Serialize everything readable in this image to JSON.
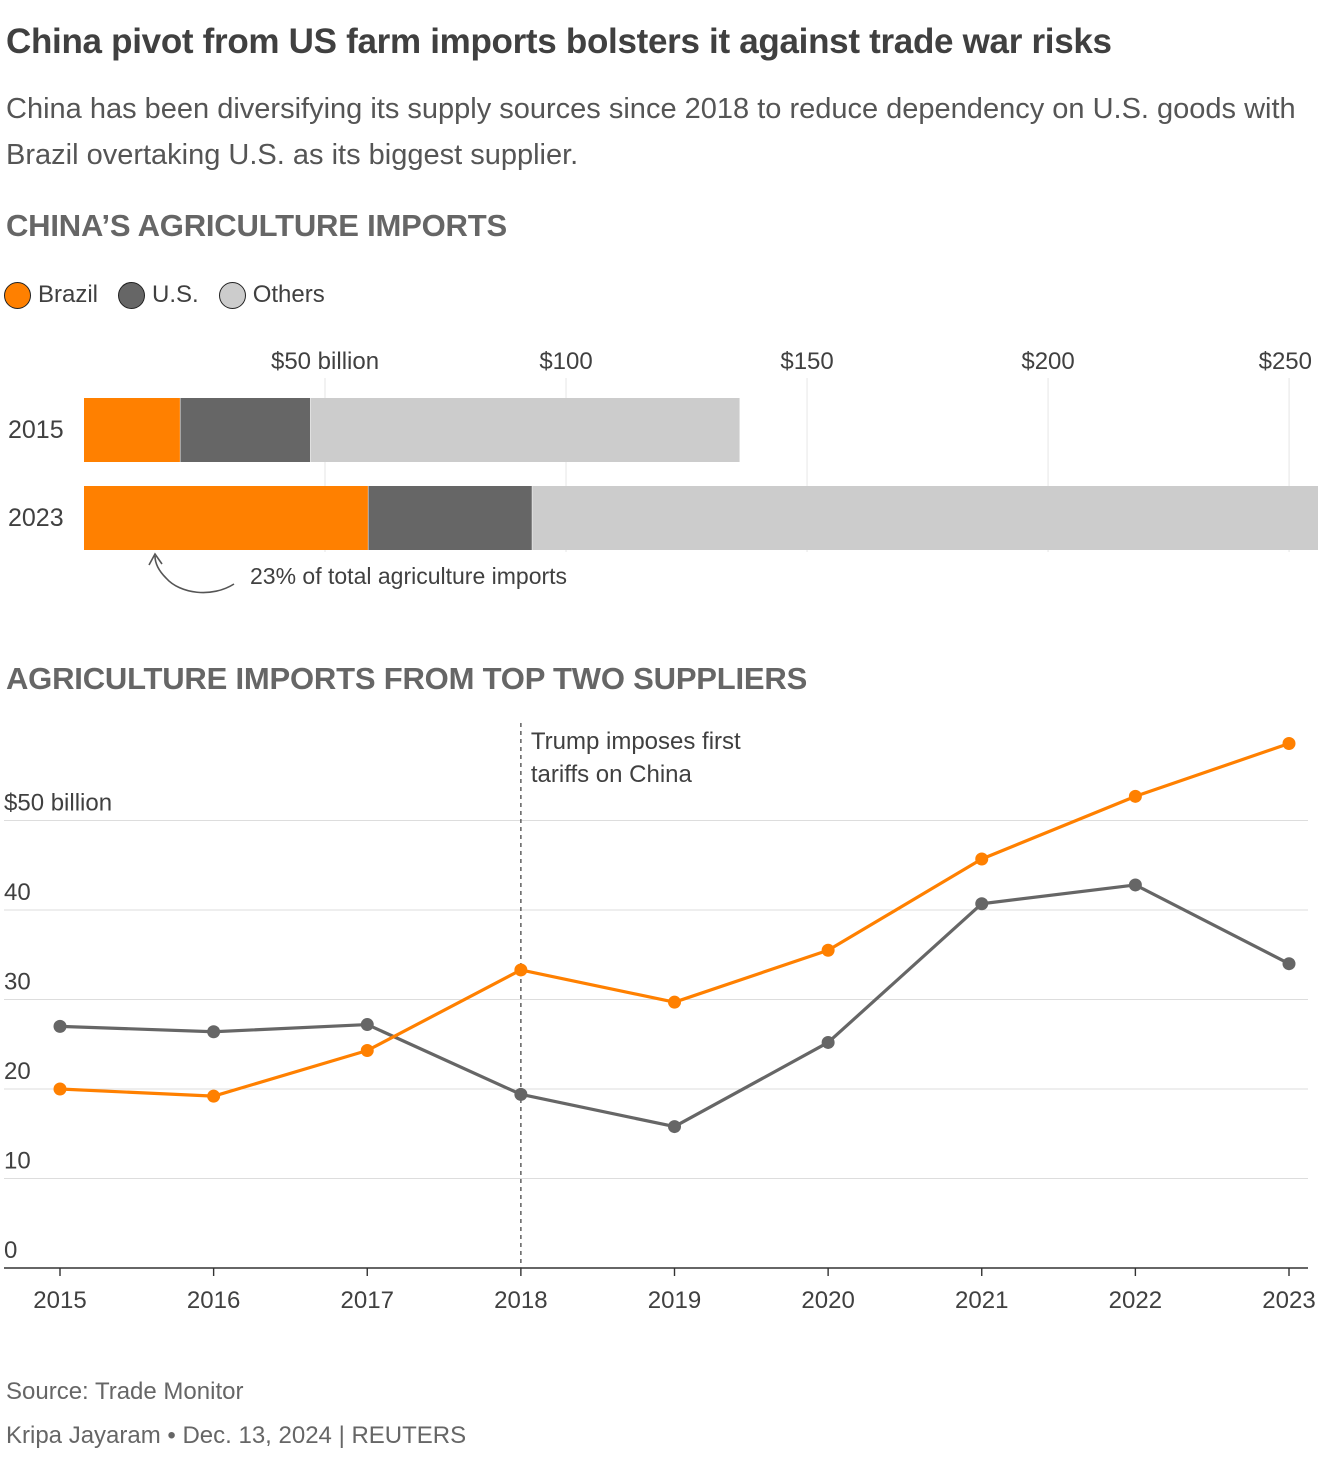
{
  "header": {
    "title": "China pivot from US farm imports bolsters it against trade war risks",
    "subtitle": "China has been diversifying its supply sources since 2018 to reduce dependency on U.S. goods with Brazil overtaking U.S. as its biggest supplier."
  },
  "legend": {
    "items": [
      {
        "label": "Brazil",
        "color": "#ff8000"
      },
      {
        "label": "U.S.",
        "color": "#666666"
      },
      {
        "label": "Others",
        "color": "#cccccc"
      }
    ]
  },
  "colors": {
    "brazil": "#ff8000",
    "us": "#666666",
    "others": "#cccccc",
    "grid": "#dddddd"
  },
  "chart_data": [
    {
      "type": "bar",
      "stacked": true,
      "orientation": "horizontal",
      "title": "CHINA’S AGRICULTURE IMPORTS",
      "categories": [
        "2015",
        "2023"
      ],
      "series": [
        {
          "name": "Brazil",
          "values": [
            20,
            59
          ]
        },
        {
          "name": "U.S.",
          "values": [
            27,
            34
          ]
        },
        {
          "name": "Others",
          "values": [
            89,
            163
          ]
        }
      ],
      "xlim": [
        0,
        256
      ],
      "tick_values": [
        50,
        100,
        150,
        200,
        250
      ],
      "tick_labels": [
        "$50 billion",
        "$100",
        "$150",
        "$200",
        "$250"
      ],
      "annotation": "23% of total agriculture imports"
    },
    {
      "type": "line",
      "title": "AGRICULTURE IMPORTS FROM TOP TWO SUPPLIERS",
      "x": [
        2015,
        2016,
        2017,
        2018,
        2019,
        2020,
        2021,
        2022,
        2023
      ],
      "x_labels": [
        "2015",
        "2016",
        "2017",
        "2018",
        "2019",
        "2020",
        "2021",
        "2022",
        "2023"
      ],
      "series": [
        {
          "name": "Brazil",
          "values": [
            20.0,
            19.2,
            24.3,
            33.3,
            29.7,
            35.5,
            45.7,
            52.7,
            58.6
          ]
        },
        {
          "name": "U.S.",
          "values": [
            27.0,
            26.4,
            27.2,
            19.4,
            15.8,
            25.2,
            40.7,
            42.8,
            34.0
          ]
        }
      ],
      "ylim": [
        0,
        60
      ],
      "y_ticks": [
        0,
        10,
        20,
        30,
        40,
        50
      ],
      "y_tick_labels": [
        "0",
        "10",
        "20",
        "30",
        "40",
        "$50 billion"
      ],
      "annotation": {
        "x": 2018,
        "lines": [
          "Trump imposes first",
          "tariffs on China"
        ]
      }
    }
  ],
  "footer": {
    "source": "Source: Trade Monitor",
    "credit": "Kripa Jayaram • Dec. 13, 2024 | REUTERS"
  }
}
